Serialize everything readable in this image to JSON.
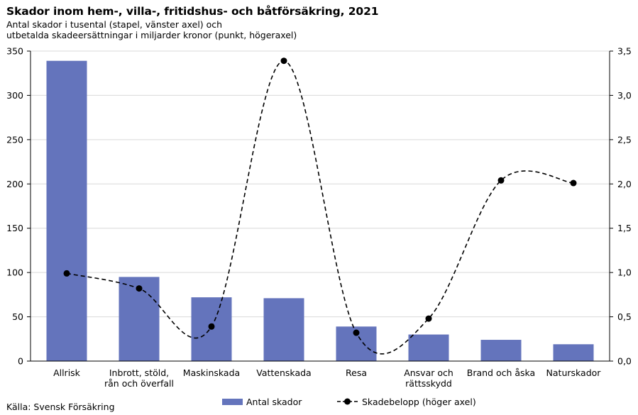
{
  "chart_data": {
    "type": "bar",
    "title": "Skador inom hem-, villa-, fritidshus- och båtförsäkring, 2021",
    "subtitle_lines": [
      "Antal skador i tusental (stapel, vänster axel) och",
      "utbetalda skadeersättningar i miljarder kronor (punkt, högeraxel)"
    ],
    "categories": [
      [
        "Allrisk"
      ],
      [
        "Inbrott, stöld,",
        "rån och överfall"
      ],
      [
        "Maskinskada"
      ],
      [
        "Vattenskada"
      ],
      [
        "Resa"
      ],
      [
        "Ansvar och",
        "rättsskydd"
      ],
      [
        "Brand och åska"
      ],
      [
        "Naturskador"
      ]
    ],
    "series": [
      {
        "name": "Antal skador",
        "type": "bar",
        "axis": "left",
        "color": "#6474BC",
        "values": [
          339,
          95,
          72,
          71,
          39,
          30,
          24,
          19
        ]
      },
      {
        "name": "Skadebelopp (höger axel)",
        "type": "line",
        "axis": "right",
        "color": "#000000",
        "style": "dashed-smooth-with-markers",
        "values": [
          0.99,
          0.82,
          0.39,
          3.39,
          0.32,
          0.48,
          2.04,
          2.01
        ]
      }
    ],
    "left_axis": {
      "ylim": [
        0,
        350
      ],
      "ticks": [
        "0",
        "50",
        "100",
        "150",
        "200",
        "250",
        "300",
        "350"
      ]
    },
    "right_axis": {
      "ylim": [
        0,
        3.5
      ],
      "ticks": [
        "0,0",
        "0,5",
        "1,0",
        "1,5",
        "2,0",
        "2,5",
        "3,0",
        "3,5"
      ]
    },
    "grid": true,
    "legend_position": "bottom"
  },
  "source": "Källa: Svensk Försäkring"
}
